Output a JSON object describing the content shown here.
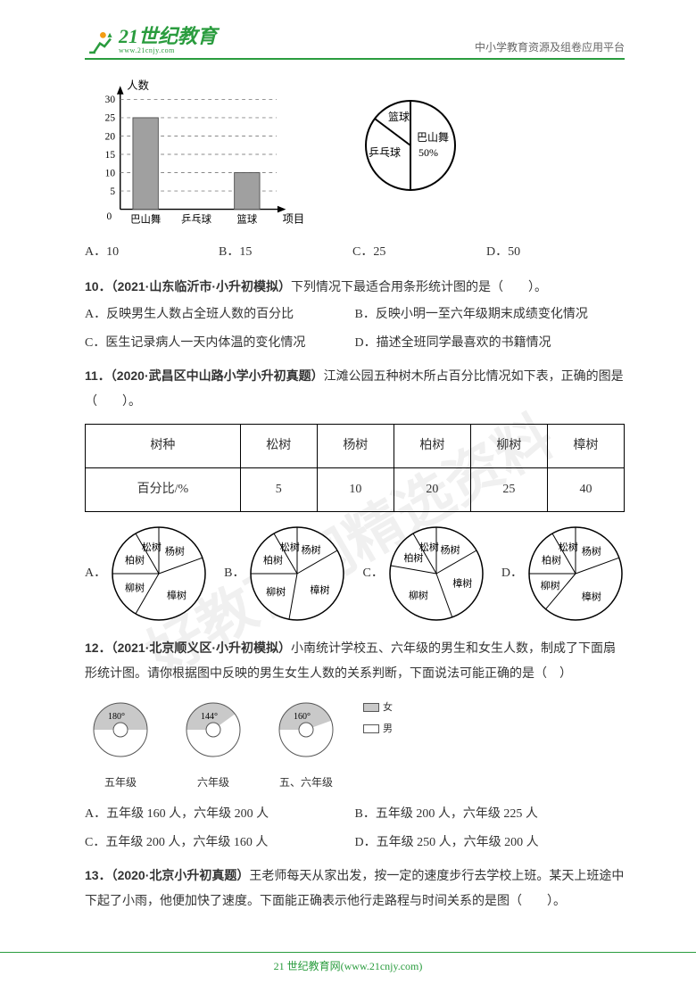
{
  "header": {
    "brand": "21世纪教育",
    "brand_sub": "www.21cnjy.com",
    "tagline": "中小学教育资源及组卷应用平台"
  },
  "watermark": "好教育网精选资料",
  "bar_chart": {
    "type": "bar",
    "y_label": "人数",
    "x_label": "项目",
    "categories": [
      "巴山舞",
      "乒乓球",
      "篮球"
    ],
    "values": [
      25,
      null,
      10
    ],
    "y_ticks": [
      5,
      10,
      15,
      20,
      25,
      30
    ],
    "ylim": [
      0,
      30
    ],
    "bar_color": "#a0a0a0",
    "grid_dash": "4 4",
    "axis_color": "#000000",
    "grid_color": "#888888"
  },
  "pie_top": {
    "type": "pie",
    "labels": [
      "篮球",
      "乒乓球",
      "巴山舞"
    ],
    "center_pct_label": "50%",
    "stroke": "#000000",
    "fill": "#ffffff",
    "radius": 50
  },
  "q9_choices": {
    "A": "A．10",
    "B": "B．15",
    "C": "C．25",
    "D": "D．50"
  },
  "q10": {
    "stem_prefix": "10．（2021·山东临沂市·小升初模拟）",
    "stem": "下列情况下最适合用条形统计图的是（　　）。",
    "A": "A．反映男生人数占全班人数的百分比",
    "B": "B．反映小明一至六年级期末成绩变化情况",
    "C": "C．医生记录病人一天内体温的变化情况",
    "D": "D．描述全班同学最喜欢的书籍情况"
  },
  "q11": {
    "stem_prefix": "11．（2020·武昌区中山路小学小升初真题）",
    "stem": "江滩公园五种树木所占百分比情况如下表，正确的图是（　　）。",
    "table": {
      "cols": [
        "树种",
        "松树",
        "杨树",
        "柏树",
        "柳树",
        "樟树"
      ],
      "row_label": "百分比/%",
      "values": [
        5,
        10,
        20,
        25,
        40
      ]
    },
    "pies": {
      "labels": [
        "杨树",
        "樟树",
        "柳树",
        "柏树",
        "松树"
      ],
      "stroke": "#000000",
      "fill": "#ffffff",
      "radius": 52,
      "font_size": 11,
      "letters": [
        "A．",
        "B．",
        "C．",
        "D．"
      ]
    }
  },
  "q12": {
    "stem_prefix": "12．（2021·北京顺义区·小升初模拟）",
    "stem1": "小南统计学校五、六年级的男生和女生人数，制成了下面扇形统计图。请你根据图中反映的男生女生人数的关系判断，下面说法可能正确的是（　）",
    "donuts": [
      {
        "angle_label": "180°",
        "caption": "五年级",
        "shade": "#c9c9c9",
        "angle": 180
      },
      {
        "angle_label": "144°",
        "caption": "六年级",
        "shade": "#c9c9c9",
        "angle": 144
      },
      {
        "angle_label": "160°",
        "caption": "五、六年级",
        "shade": "#c9c9c9",
        "angle": 160
      }
    ],
    "legend": {
      "female": "女",
      "male": "男",
      "female_fill": "#c9c9c9",
      "male_fill": "#ffffff"
    },
    "A": "A．五年级 160 人，六年级 200 人",
    "B": "B．五年级 200 人，六年级 225 人",
    "C": "C．五年级 200 人，六年级 160 人",
    "D": "D．五年级 250 人，六年级 200 人"
  },
  "q13": {
    "stem_prefix": "13．（2020·北京小升初真题）",
    "stem": "王老师每天从家出发，按一定的速度步行去学校上班。某天上班途中下起了小雨，他便加快了速度。下面能正确表示他行走路程与时间关系的是图（　　）。"
  },
  "footer": "21 世纪教育网(www.21cnjy.com)"
}
